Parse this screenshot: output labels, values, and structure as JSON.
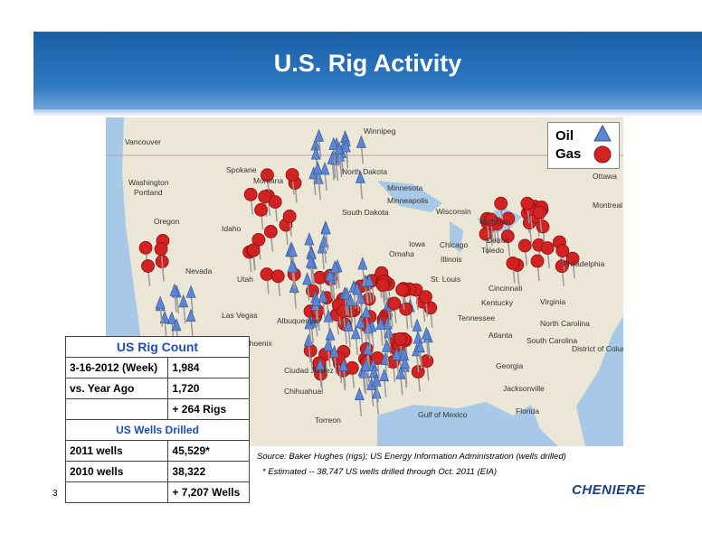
{
  "header": {
    "title": "U.S. Rig Activity"
  },
  "legend": [
    "Oil",
    "Gas"
  ],
  "table": {
    "heading": "US Rig Count",
    "rows": [
      {
        "label": "3-16-2012 (Week)",
        "value": "1,984"
      },
      {
        "label": "vs.  Year Ago",
        "value": "1,720"
      },
      {
        "value": "+ 264 Rigs"
      }
    ],
    "subheading": "US Wells Drilled",
    "rows2": [
      {
        "label": "2011 wells",
        "value": "45,529*"
      },
      {
        "label": "2010 wells",
        "value": "38,322"
      },
      {
        "value": "+ 7,207 Wells"
      }
    ]
  },
  "source": "Source: Baker Hughes (rigs); US Energy Information Administration (wells drilled)",
  "footnote": "* Estimated -- 38,747 US wells drilled through Oct. 2011 (EIA)",
  "page_number": "3",
  "logo": "CHENIERE",
  "map_labels": [
    "Vancouver",
    "Washington",
    "Spokane",
    "Portland",
    "Oregon",
    "Idaho",
    "Montana",
    "Nevada",
    "Utah",
    "Las Vegas",
    "Winnipeg",
    "North Dakota",
    "South Dakota",
    "Minnesota",
    "Minneapolis",
    "Wisconsin",
    "Michigan",
    "Iowa",
    "Chicago",
    "Illinois",
    "Omaha",
    "St. Louis",
    "Kentucky",
    "Tennessee",
    "Virginia",
    "North Carolina",
    "South Carolina",
    "Atlanta",
    "Georgia",
    "Jacksonville",
    "Florida",
    "Philadelphia",
    "Ottawa",
    "Montreal",
    "Detroit",
    "Toledo",
    "Cincinnati",
    "Albuquerque",
    "Phoenix",
    "Ciudad Juarez",
    "Chihuahua",
    "Torreon",
    "Gulf of Mexico",
    "District of Columbia"
  ]
}
